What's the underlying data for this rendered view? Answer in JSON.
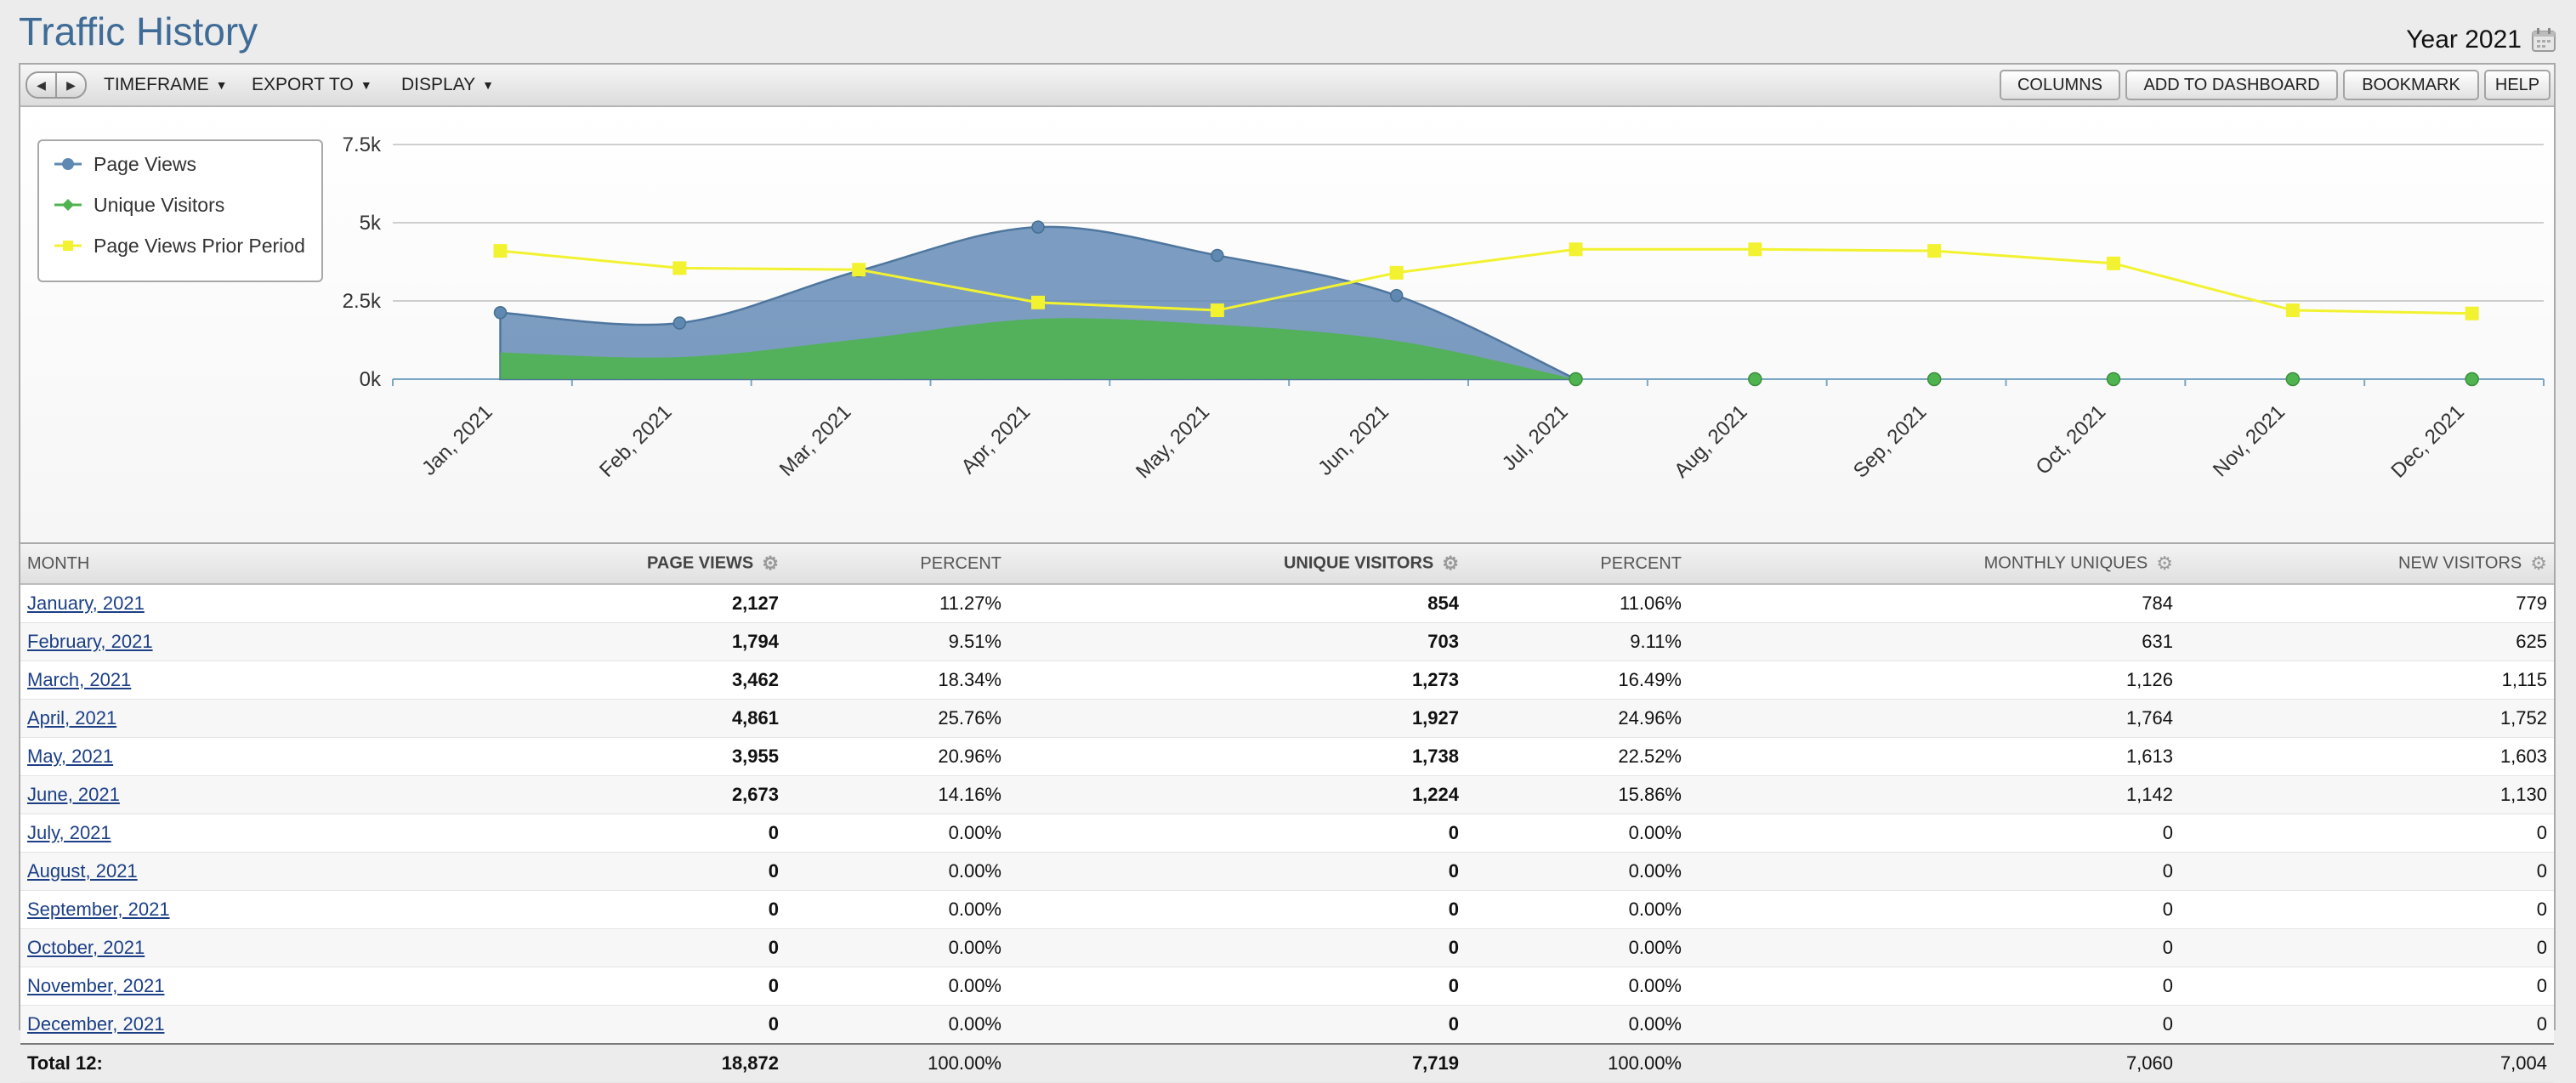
{
  "header": {
    "title": "Traffic History",
    "period_label": "Year 2021"
  },
  "toolbar": {
    "menus": [
      "TIMEFRAME",
      "EXPORT TO",
      "DISPLAY"
    ],
    "buttons": [
      "COLUMNS",
      "ADD TO DASHBOARD",
      "BOOKMARK",
      "HELP"
    ]
  },
  "colors": {
    "page_views": "#5f88b3",
    "unique_visitors": "#4fb350",
    "prior_period": "#f2f230",
    "title": "#3f6c97"
  },
  "chart_data": {
    "type": "area",
    "categories": [
      "Jan, 2021",
      "Feb, 2021",
      "Mar, 2021",
      "Apr, 2021",
      "May, 2021",
      "Jun, 2021",
      "Jul, 2021",
      "Aug, 2021",
      "Sep, 2021",
      "Oct, 2021",
      "Nov, 2021",
      "Dec, 2021"
    ],
    "y_ticks": [
      "7.5k",
      "5k",
      "2.5k",
      "0k"
    ],
    "ylim": [
      0,
      7500
    ],
    "grid": true,
    "legend_position": "top-left",
    "series": [
      {
        "name": "Page Views",
        "style": "area",
        "values": [
          2127,
          1794,
          3462,
          4861,
          3955,
          2673,
          0,
          0,
          0,
          0,
          0,
          0
        ]
      },
      {
        "name": "Unique Visitors",
        "style": "area",
        "values": [
          854,
          703,
          1273,
          1927,
          1738,
          1224,
          0,
          0,
          0,
          0,
          0,
          0
        ]
      },
      {
        "name": "Page Views Prior Period",
        "style": "line",
        "values": [
          4100,
          3550,
          3500,
          2450,
          2200,
          3400,
          4150,
          4150,
          4100,
          3700,
          2200,
          2100
        ]
      }
    ]
  },
  "table": {
    "headers": [
      "MONTH",
      "PAGE VIEWS",
      "PERCENT",
      "UNIQUE VISITORS",
      "PERCENT",
      "MONTHLY UNIQUES",
      "NEW VISITORS"
    ],
    "rows": [
      [
        "January, 2021",
        "2,127",
        "11.27%",
        "854",
        "11.06%",
        "784",
        "779"
      ],
      [
        "February, 2021",
        "1,794",
        "9.51%",
        "703",
        "9.11%",
        "631",
        "625"
      ],
      [
        "March, 2021",
        "3,462",
        "18.34%",
        "1,273",
        "16.49%",
        "1,126",
        "1,115"
      ],
      [
        "April, 2021",
        "4,861",
        "25.76%",
        "1,927",
        "24.96%",
        "1,764",
        "1,752"
      ],
      [
        "May, 2021",
        "3,955",
        "20.96%",
        "1,738",
        "22.52%",
        "1,613",
        "1,603"
      ],
      [
        "June, 2021",
        "2,673",
        "14.16%",
        "1,224",
        "15.86%",
        "1,142",
        "1,130"
      ],
      [
        "July, 2021",
        "0",
        "0.00%",
        "0",
        "0.00%",
        "0",
        "0"
      ],
      [
        "August, 2021",
        "0",
        "0.00%",
        "0",
        "0.00%",
        "0",
        "0"
      ],
      [
        "September, 2021",
        "0",
        "0.00%",
        "0",
        "0.00%",
        "0",
        "0"
      ],
      [
        "October, 2021",
        "0",
        "0.00%",
        "0",
        "0.00%",
        "0",
        "0"
      ],
      [
        "November, 2021",
        "0",
        "0.00%",
        "0",
        "0.00%",
        "0",
        "0"
      ],
      [
        "December, 2021",
        "0",
        "0.00%",
        "0",
        "0.00%",
        "0",
        "0"
      ]
    ],
    "total": [
      "Total 12:",
      "18,872",
      "100.00%",
      "7,719",
      "100.00%",
      "7,060",
      "7,004"
    ]
  }
}
